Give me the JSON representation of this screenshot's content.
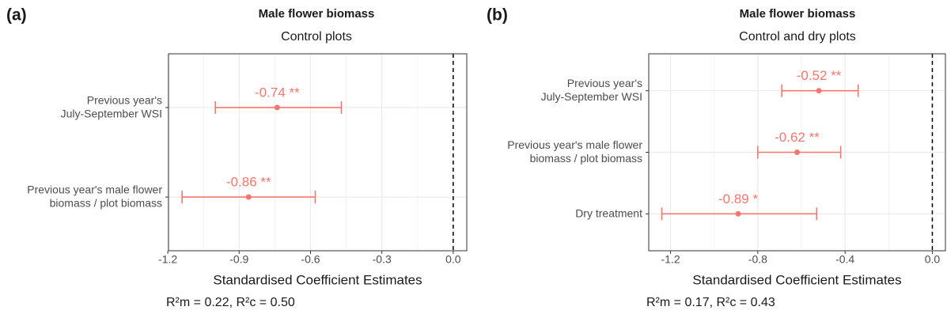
{
  "chart_data": [
    {
      "type": "forest",
      "panel_label": "(a)",
      "title": "Male flower biomass",
      "subtitle": "Control plots",
      "categories": [
        [
          "Previous year's",
          "July-September WSI"
        ],
        [
          "Previous year's male flower",
          "biomass / plot biomass"
        ]
      ],
      "values": [
        -0.74,
        -0.86
      ],
      "value_labels": [
        "-0.74 **",
        "-0.86 **"
      ],
      "lower": [
        -1.0,
        -1.14
      ],
      "upper": [
        -0.47,
        -0.58
      ],
      "color": "#f8766d",
      "xlim": [
        -1.197,
        0.057
      ],
      "xticks": [
        -1.2,
        -0.9,
        -0.6,
        -0.3,
        {
          "value": 0,
          "label": "0.0"
        }
      ],
      "xlabel": "Standardised Coefficient Estimates",
      "note": "R²m = 0.22, R²c = 0.50",
      "grid": true
    },
    {
      "type": "forest",
      "panel_label": "(b)",
      "title": "Male flower biomass",
      "subtitle": "Control and dry plots",
      "categories": [
        [
          "Previous year's",
          "July-September WSI"
        ],
        [
          "Previous year's male flower",
          "biomass / plot biomass"
        ],
        [
          "Dry treatment"
        ]
      ],
      "values": [
        -0.52,
        -0.62,
        -0.89
      ],
      "value_labels": [
        "-0.52 **",
        "-0.62 **",
        "-0.89 *"
      ],
      "lower": [
        -0.69,
        -0.8,
        -1.24
      ],
      "upper": [
        -0.34,
        -0.42,
        -0.53
      ],
      "color": "#f8766d",
      "xlim": [
        -1.3,
        0.06
      ],
      "xticks": [
        -1.2,
        -0.8,
        -0.4,
        {
          "value": 0,
          "label": "0.0"
        }
      ],
      "xlabel": "Standardised Coefficient Estimates",
      "note": "R²m = 0.17, R²c = 0.43",
      "grid": true
    }
  ]
}
